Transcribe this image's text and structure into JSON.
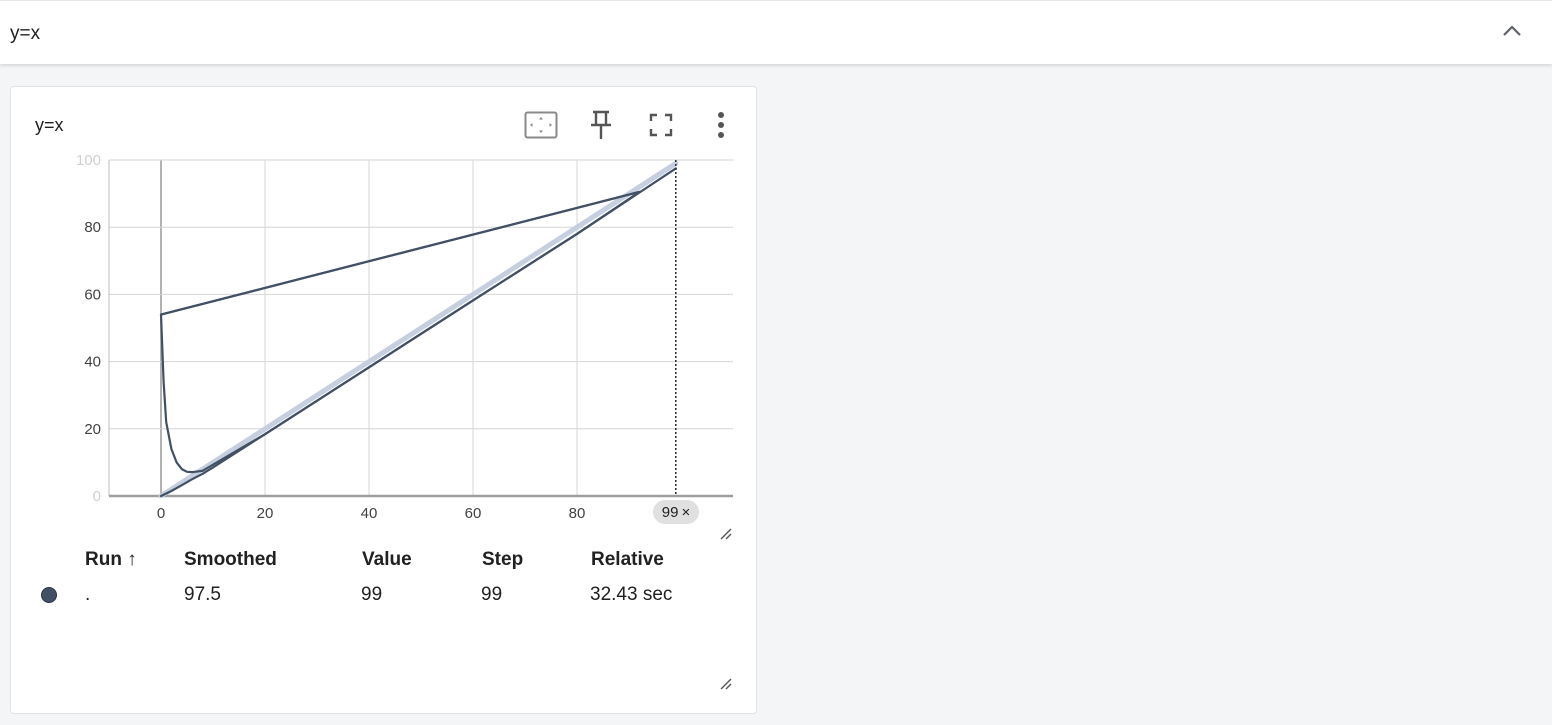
{
  "group": {
    "title": "y=x"
  },
  "card": {
    "title": "y=x",
    "toolbar": {
      "fit_icon": "fit-domain-icon",
      "pin_icon": "pin-icon",
      "fullscreen_icon": "fullscreen-icon",
      "more_icon": "more-vert-icon"
    }
  },
  "chart_data": {
    "type": "line",
    "title": "y=x",
    "xlabel": "",
    "ylabel": "",
    "x_ticks": [
      "0",
      "20",
      "40",
      "60",
      "80"
    ],
    "y_ticks": [
      "0",
      "20",
      "40",
      "60",
      "80",
      "100"
    ],
    "xlim": [
      -10,
      110
    ],
    "ylim": [
      0,
      100
    ],
    "grid": true,
    "colors": {
      "raw": "#c5cfe0",
      "smoothed": "#425066"
    },
    "series": [
      {
        "role": "raw",
        "x": [
          0,
          99
        ],
        "y": [
          0,
          99
        ]
      },
      {
        "role": "smoothed",
        "x": [
          0,
          2,
          4,
          6,
          8,
          10,
          20,
          40,
          60,
          80,
          92,
          0,
          0,
          0.5,
          1,
          2,
          3,
          4,
          5,
          6,
          8
        ],
        "y": [
          0,
          1.5,
          3.2,
          5,
          6.6,
          8.5,
          18.4,
          38.3,
          58.2,
          78,
          90.5,
          54,
          54,
          34,
          22,
          14,
          10,
          8,
          7.2,
          7.1,
          7.5
        ]
      },
      {
        "role": "smoothed",
        "x": [
          0,
          92
        ],
        "y": [
          54,
          90.5
        ]
      },
      {
        "role": "smoothed",
        "x": [
          8,
          20,
          40,
          60,
          80,
          99
        ],
        "y": [
          7.5,
          18.4,
          38.3,
          58.2,
          78,
          97.5
        ]
      }
    ],
    "cursor_step": "99",
    "cursor_step_close": "×"
  },
  "table": {
    "headers": {
      "run": "Run",
      "run_sort": "↑",
      "smoothed": "Smoothed",
      "value": "Value",
      "step": "Step",
      "relative": "Relative"
    },
    "rows": [
      {
        "run": ".",
        "smoothed": "97.5",
        "value": "99",
        "step": "99",
        "relative": "32.43 sec",
        "color": "#425066"
      }
    ]
  }
}
